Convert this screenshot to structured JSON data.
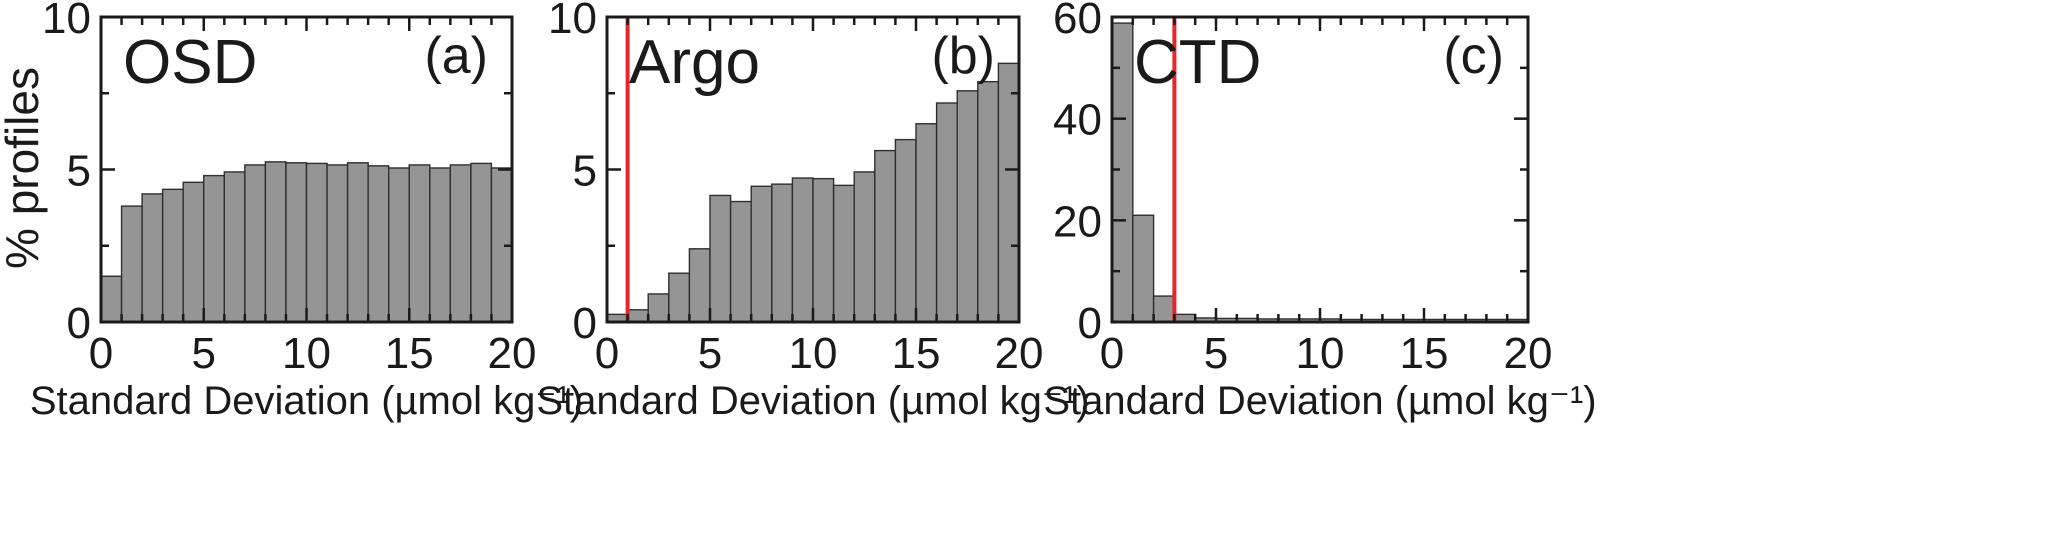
{
  "figure": {
    "ylabel": "% profiles"
  },
  "chart_data": [
    {
      "type": "bar",
      "panel_name": "OSD",
      "panel_letter": "(a)",
      "xlabel": "Standard Deviation (µmol kg⁻¹)",
      "xlim": [
        0,
        20
      ],
      "ylim": [
        0,
        10
      ],
      "x_ticks": [
        0,
        5,
        10,
        15,
        20
      ],
      "y_ticks": [
        0,
        5,
        10
      ],
      "bin_width": 1,
      "bin_starts": [
        0,
        1,
        2,
        3,
        4,
        5,
        6,
        7,
        8,
        9,
        10,
        11,
        12,
        13,
        14,
        15,
        16,
        17,
        18,
        19
      ],
      "values": [
        1.5,
        3.8,
        4.2,
        4.35,
        4.58,
        4.8,
        4.92,
        5.15,
        5.25,
        5.22,
        5.2,
        5.15,
        5.22,
        5.12,
        5.05,
        5.15,
        5.05,
        5.15,
        5.2,
        5.05
      ],
      "reference_line_x": null,
      "grid": false
    },
    {
      "type": "bar",
      "panel_name": "Argo",
      "panel_letter": "(b)",
      "xlabel": "Standard Deviation (µmol kg⁻¹)",
      "xlim": [
        0,
        20
      ],
      "ylim": [
        0,
        10
      ],
      "x_ticks": [
        0,
        5,
        10,
        15,
        20
      ],
      "y_ticks": [
        0,
        5,
        10
      ],
      "bin_width": 1,
      "bin_starts": [
        0,
        1,
        2,
        3,
        4,
        5,
        6,
        7,
        8,
        9,
        10,
        11,
        12,
        13,
        14,
        15,
        16,
        17,
        18,
        19
      ],
      "values": [
        0.25,
        0.4,
        0.92,
        1.6,
        2.4,
        4.15,
        3.95,
        4.45,
        4.52,
        4.72,
        4.7,
        4.48,
        4.92,
        5.62,
        5.98,
        6.5,
        7.18,
        7.58,
        7.88,
        8.48
      ],
      "reference_line_x": 1,
      "grid": false
    },
    {
      "type": "bar",
      "panel_name": "CTD",
      "panel_letter": "(c)",
      "xlabel": "Standard Deviation (µmol kg⁻¹)",
      "xlim": [
        0,
        20
      ],
      "ylim": [
        0,
        60
      ],
      "x_ticks": [
        0,
        5,
        10,
        15,
        20
      ],
      "y_ticks": [
        0,
        20,
        40,
        60
      ],
      "bin_width": 1,
      "bin_starts": [
        0,
        1,
        2,
        3,
        4,
        5,
        6,
        7,
        8,
        9,
        10,
        11,
        12,
        13,
        14,
        15,
        16,
        17,
        18,
        19
      ],
      "values": [
        58.8,
        21.0,
        5.1,
        1.5,
        0.8,
        0.7,
        0.7,
        0.6,
        0.6,
        0.6,
        0.6,
        0.5,
        0.5,
        0.5,
        0.5,
        0.5,
        0.5,
        0.5,
        0.5,
        0.5
      ],
      "reference_line_x": 3,
      "grid": false
    }
  ]
}
